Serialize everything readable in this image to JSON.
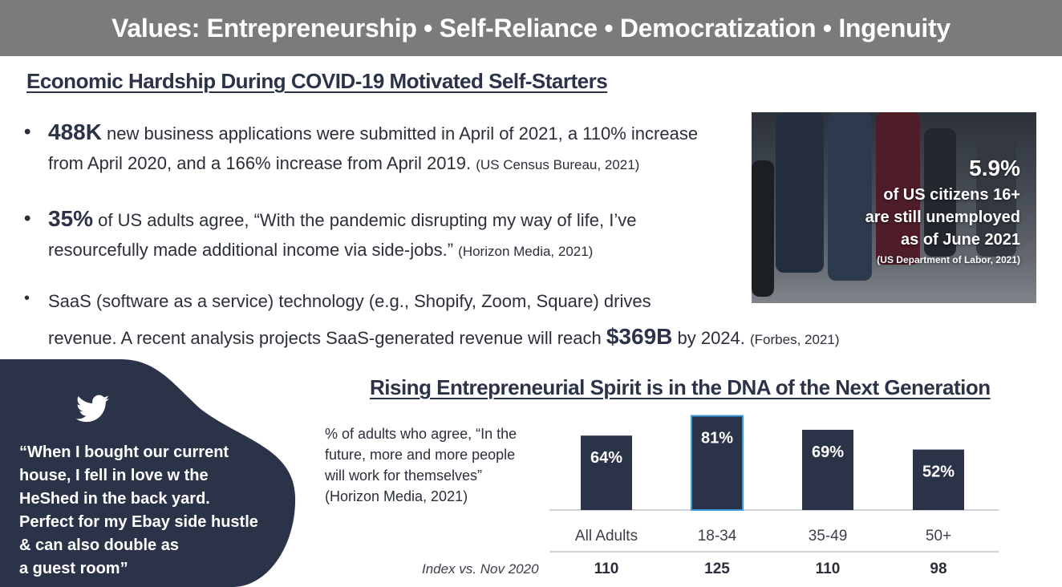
{
  "banner": {
    "text": "Values: Entrepreneurship • Self-Reliance • Democratization • Ingenuity"
  },
  "section1": {
    "title": "Economic Hardship During COVID-19 Motivated Self-Starters"
  },
  "bullets": [
    {
      "dot": "•",
      "highlight": "488K",
      "line1": " new business applications were submitted in April of 2021, a 110% increase",
      "line2": "from April 2020, and a 166% increase from April 2019.",
      "source": "(US Census Bureau, 2021)"
    },
    {
      "dot": "•",
      "highlight": "35%",
      "line1": " of US adults agree, “With the pandemic disrupting my way of life, I’ve",
      "line2": "resourcefully made additional income via side-jobs.”",
      "source": "(Horizon Media, 2021)"
    },
    {
      "dot": "•",
      "line1": "SaaS (software as a service) technology (e.g., Shopify, Zoom, Square) drives",
      "line2_pre": "revenue. A recent analysis projects SaaS-generated revenue will reach ",
      "highlight": "$369B",
      "line2_post": " by 2024.",
      "source": "(Forbes, 2021)"
    }
  ],
  "photo_stat": {
    "percent": "5.9%",
    "line1": "of US citizens 16+",
    "line2": "are still unemployed",
    "line3": "as of June 2021",
    "source": "(US Department of Labor, 2021)"
  },
  "quote": {
    "icon": "twitter-bird-icon",
    "lines": [
      "“When I bought our current",
      "house, I fell in love w the",
      "HeShed in the back yard.",
      "Perfect for my Ebay side hustle",
      "& can also double as",
      "a guest room”"
    ]
  },
  "section2": {
    "title": "Rising Entrepreneurial Spirit is in the DNA of the Next Generation"
  },
  "chart_note": {
    "lines": [
      "% of adults who agree, “In the",
      "future, more and more people",
      "will work for themselves”",
      "(Horizon Media, 2021)"
    ]
  },
  "index_label": "Index vs. Nov 2020",
  "chart_data": {
    "type": "bar",
    "categories": [
      "All Adults",
      "18-34",
      "35-49",
      "50+"
    ],
    "values": [
      64,
      81,
      69,
      52
    ],
    "value_labels": [
      "64%",
      "81%",
      "69%",
      "52%"
    ],
    "index_values": [
      "110",
      "125",
      "110",
      "98"
    ],
    "ylim": [
      0,
      100
    ],
    "bar_color": "#2a3348",
    "highlight_index": 1,
    "highlight_border": "#3a9bd9"
  }
}
